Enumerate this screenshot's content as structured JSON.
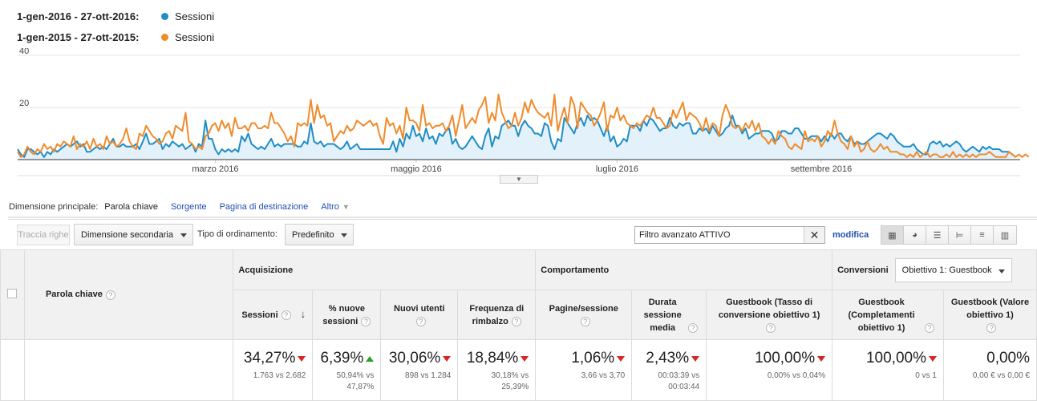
{
  "legend": [
    {
      "range": "1-gen-2016 - 27-ott-2016:",
      "series": "Sessioni",
      "color": "#1f8dc7"
    },
    {
      "range": "1-gen-2015 - 27-ott-2015:",
      "series": "Sessioni",
      "color": "#ef8b2c"
    }
  ],
  "chart_data": {
    "type": "line",
    "x_tick_labels": [
      "marzo 2016",
      "maggio 2016",
      "luglio 2016",
      "settembre 2016"
    ],
    "y_tick_labels": [
      "40",
      "20"
    ],
    "ylim": [
      0,
      40
    ],
    "days": 301,
    "grid": true,
    "series": [
      {
        "name": "Sessioni",
        "color": "#1f8dc7",
        "area": true,
        "values": [
          4,
          2,
          1,
          4,
          4,
          3,
          2,
          3,
          1,
          3,
          2,
          4,
          3,
          4,
          5,
          6,
          5,
          6,
          7,
          5,
          6,
          3,
          3,
          4,
          5,
          4,
          5,
          4,
          6,
          8,
          5,
          5,
          6,
          5,
          5,
          5,
          6,
          4,
          7,
          10,
          6,
          6,
          7,
          8,
          4,
          6,
          5,
          7,
          6,
          5,
          6,
          4,
          5,
          6,
          3,
          6,
          5,
          15,
          8,
          8,
          4,
          2,
          4,
          3,
          4,
          3,
          4,
          3,
          9,
          7,
          10,
          6,
          5,
          4,
          5,
          4,
          6,
          8,
          5,
          6,
          5,
          6,
          6,
          6,
          6,
          5,
          5,
          7,
          6,
          14,
          7,
          6,
          7,
          5,
          6,
          6,
          6,
          5,
          4,
          5,
          7,
          4,
          5,
          6,
          4,
          4,
          4,
          4,
          4,
          4,
          4,
          4,
          4,
          4,
          7,
          3,
          8,
          5,
          10,
          8,
          13,
          9,
          10,
          7,
          12,
          8,
          9,
          6,
          10,
          9,
          11,
          12,
          6,
          8,
          5,
          4,
          5,
          7,
          9,
          7,
          5,
          4,
          9,
          12,
          5,
          9,
          8,
          13,
          14,
          15,
          13,
          13,
          9,
          13,
          15,
          13,
          12,
          10,
          10,
          9,
          14,
          13,
          7,
          4,
          8,
          7,
          16,
          14,
          12,
          10,
          14,
          16,
          13,
          17,
          15,
          16,
          15,
          12,
          9,
          13,
          7,
          9,
          5,
          6,
          8,
          7,
          13,
          13,
          13,
          11,
          15,
          13,
          16,
          15,
          13,
          11,
          12,
          12,
          16,
          13,
          12,
          14,
          13,
          14,
          14,
          10,
          10,
          12,
          11,
          12,
          10,
          13,
          11,
          9,
          10,
          12,
          13,
          17,
          13,
          13,
          10,
          12,
          8,
          9,
          10,
          10,
          11,
          11,
          11,
          10,
          7,
          8,
          11,
          11,
          10,
          10,
          12,
          12,
          10,
          8,
          8,
          9,
          9,
          9,
          7,
          9,
          7,
          10,
          8,
          10,
          10,
          8,
          7,
          9,
          6,
          7,
          6,
          6,
          7,
          8,
          9,
          10,
          10,
          9,
          8,
          10,
          9,
          7,
          6,
          5,
          5,
          5,
          6,
          4,
          3,
          2,
          2,
          6,
          7,
          6,
          7,
          5,
          6,
          5,
          6,
          7,
          6,
          4,
          3,
          4,
          5,
          4,
          3,
          5,
          4,
          5,
          4,
          4,
          4,
          3,
          3,
          3,
          2,
          1
        ]
      },
      {
        "name": "Sessioni",
        "color": "#ef8b2c",
        "area": false,
        "values": [
          3,
          1,
          2,
          5,
          3,
          2,
          4,
          3,
          6,
          4,
          5,
          3,
          6,
          5,
          7,
          6,
          5,
          9,
          4,
          6,
          5,
          7,
          4,
          8,
          5,
          6,
          4,
          9,
          6,
          7,
          5,
          6,
          8,
          12,
          7,
          5,
          4,
          10,
          9,
          13,
          11,
          9,
          8,
          6,
          7,
          10,
          11,
          8,
          13,
          12,
          11,
          18,
          7,
          6,
          4,
          5,
          4,
          9,
          10,
          13,
          14,
          11,
          15,
          12,
          14,
          9,
          16,
          12,
          12,
          13,
          11,
          14,
          14,
          12,
          12,
          13,
          12,
          18,
          14,
          14,
          12,
          10,
          7,
          9,
          5,
          14,
          13,
          14,
          13,
          23,
          14,
          21,
          16,
          17,
          13,
          14,
          7,
          9,
          11,
          10,
          13,
          11,
          12,
          15,
          14,
          13,
          14,
          15,
          13,
          14,
          9,
          6,
          16,
          13,
          14,
          10,
          13,
          8,
          20,
          15,
          15,
          14,
          11,
          21,
          13,
          14,
          12,
          13,
          13,
          14,
          11,
          13,
          17,
          9,
          15,
          21,
          12,
          14,
          16,
          14,
          19,
          21,
          24,
          14,
          18,
          15,
          25,
          18,
          15,
          12,
          13,
          18,
          13,
          16,
          22,
          18,
          23,
          20,
          18,
          17,
          16,
          18,
          13,
          25,
          11,
          16,
          20,
          14,
          24,
          21,
          12,
          22,
          20,
          18,
          17,
          13,
          15,
          18,
          22,
          11,
          17,
          16,
          20,
          15,
          17,
          14,
          13,
          12,
          14,
          13,
          15,
          17,
          16,
          20,
          16,
          16,
          14,
          12,
          13,
          19,
          16,
          19,
          22,
          15,
          18,
          17,
          16,
          14,
          11,
          16,
          11,
          14,
          13,
          9,
          17,
          21,
          18,
          13,
          12,
          13,
          11,
          14,
          12,
          15,
          11,
          14,
          9,
          8,
          6,
          8,
          6,
          11,
          9,
          8,
          5,
          4,
          6,
          5,
          4,
          11,
          7,
          8,
          7,
          9,
          5,
          7,
          11,
          9,
          15,
          10,
          7,
          6,
          4,
          9,
          5,
          7,
          3,
          4,
          7,
          4,
          3,
          4,
          6,
          4,
          5,
          3,
          3,
          3,
          2,
          2,
          1,
          2,
          1,
          3,
          1,
          2,
          3,
          1,
          2,
          2,
          1,
          1,
          2,
          1,
          3,
          1,
          2,
          1,
          2,
          1,
          2,
          1,
          2,
          2,
          2,
          3,
          2,
          1,
          1,
          1,
          1,
          3,
          2,
          1,
          2,
          1,
          2,
          1
        ]
      }
    ]
  },
  "dimension": {
    "label": "Dimensione principale:",
    "items": [
      {
        "text": "Parola chiave",
        "active": true
      },
      {
        "text": "Sorgente",
        "active": false
      },
      {
        "text": "Pagina di destinazione",
        "active": false
      },
      {
        "text": "Altro",
        "active": false
      }
    ]
  },
  "toolbar": {
    "plot_rows": "Traccia righe",
    "secondary_dim": "Dimensione secondaria",
    "sort_label": "Tipo di ordinamento:",
    "sort_value": "Predefinito",
    "filter_text": "Filtro avanzato ATTIVO",
    "modify": "modifica"
  },
  "table": {
    "col_keyword": "Parola chiave",
    "groups": {
      "acquisizione": "Acquisizione",
      "comportamento": "Comportamento",
      "conversioni": "Conversioni",
      "goal_select": "Obiettivo 1: Guestbook"
    },
    "metrics": [
      {
        "label": "Sessioni",
        "value": "34,27%",
        "trend": "down",
        "sub": "1.763 vs 2.682"
      },
      {
        "label": "% nuove sessioni",
        "value": "6,39%",
        "trend": "up",
        "sub": "50,94% vs 47,87%"
      },
      {
        "label": "Nuovi utenti",
        "value": "30,06%",
        "trend": "down",
        "sub": "898 vs 1.284"
      },
      {
        "label": "Frequenza di rimbalzo",
        "value": "18,84%",
        "trend": "down",
        "sub": "30,18% vs 25,39%"
      },
      {
        "label": "Pagine/sessione",
        "value": "1,06%",
        "trend": "down",
        "sub": "3,66 vs 3,70"
      },
      {
        "label": "Durata sessione media",
        "value": "2,43%",
        "trend": "down",
        "sub": "00:03:39 vs 00:03:44"
      },
      {
        "label": "Guestbook (Tasso di conversione obiettivo 1)",
        "value": "100,00%",
        "trend": "down",
        "sub": "0,00% vs 0,04%"
      },
      {
        "label": "Guestbook (Completamenti obiettivo 1)",
        "value": "100,00%",
        "trend": "down",
        "sub": "0 vs 1"
      },
      {
        "label": "Guestbook (Valore obiettivo 1)",
        "value": "0,00%",
        "trend": "none",
        "sub": "0,00 € vs 0,00 €"
      }
    ]
  }
}
